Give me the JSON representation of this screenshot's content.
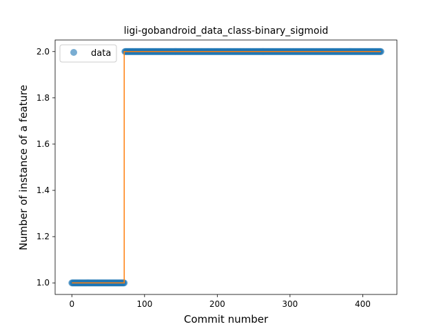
{
  "chart_data": {
    "type": "scatter",
    "title": "ligi-gobandroid_data_class-binary_sigmoid",
    "xlabel": "Commit number",
    "ylabel": "Number of instance of a feature",
    "xlim": [
      -23,
      447
    ],
    "ylim": [
      0.95,
      2.05
    ],
    "xticks": [
      0,
      100,
      200,
      300,
      400
    ],
    "yticks": [
      1.0,
      1.2,
      1.4,
      1.6,
      1.8,
      2.0
    ],
    "ytick_labels": [
      "1.0",
      "1.2",
      "1.4",
      "1.6",
      "1.8",
      "2.0"
    ],
    "legend": {
      "entries": [
        "data"
      ],
      "placement": "top-left"
    },
    "grid": false,
    "colors": {
      "data": "#1f77b4",
      "fit": "#ff7f0e"
    },
    "series": [
      {
        "name": "data",
        "kind": "points",
        "segments": [
          {
            "x_start": 0,
            "x_end": 72,
            "y": 1.0
          },
          {
            "x_start": 73,
            "x_end": 425,
            "y": 2.0
          }
        ]
      },
      {
        "kind": "line",
        "x": [
          0,
          72,
          72,
          425
        ],
        "y": [
          1.0,
          1.0,
          2.0,
          2.0
        ]
      }
    ]
  }
}
